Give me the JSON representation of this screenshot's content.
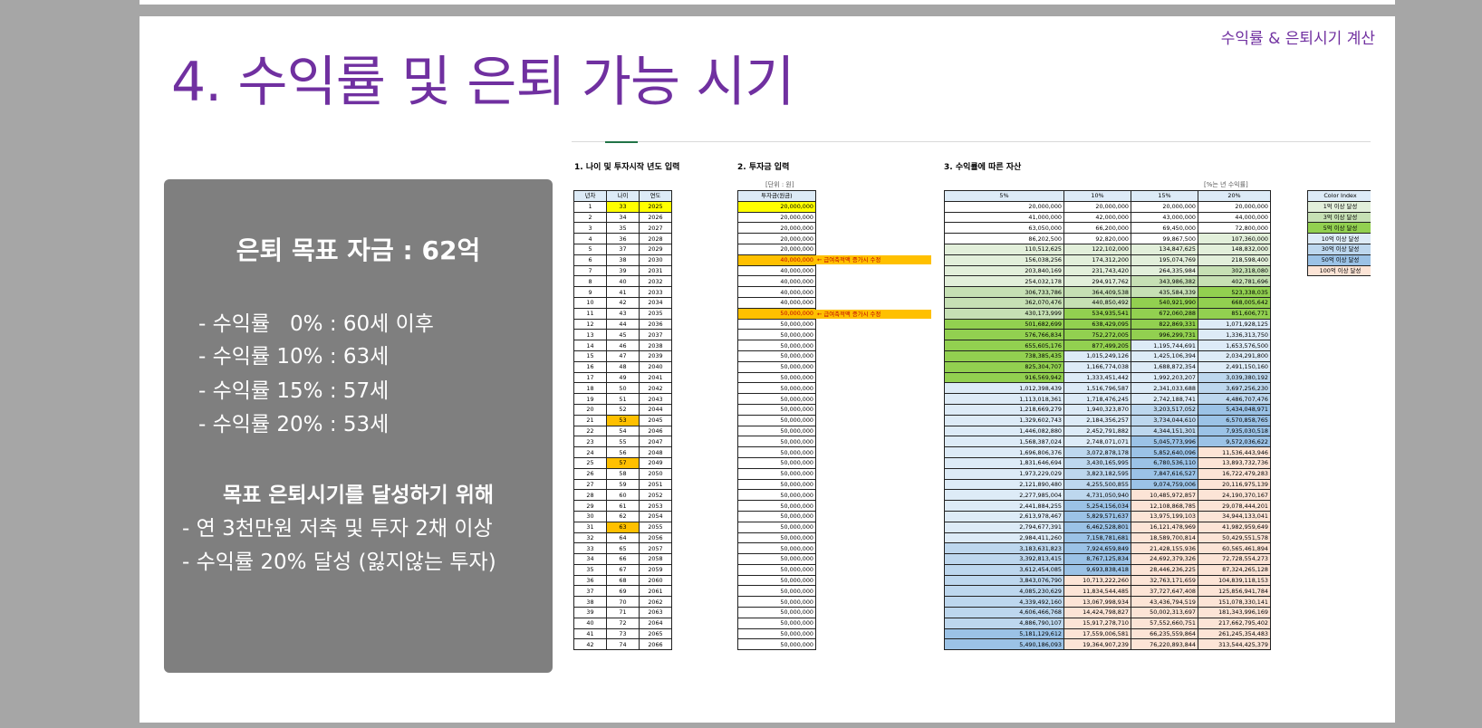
{
  "slide": {
    "title": "4. 수익률 및 은퇴 가능 시기",
    "subtitle": "수익률 & 은퇴시기 계산"
  },
  "summary": {
    "title": "은퇴 목표 자금 : 62억",
    "lines": [
      "- 수익률   0% : 60세 이후",
      "- 수익률 10% : 63세",
      "- 수익률 15% : 57세",
      "- 수익률 20% : 53세"
    ],
    "subtitle": "목표 은퇴시기를 달성하기 위해",
    "actions": [
      "- 연 3천만원 저축 및 투자 2채 이상",
      "- 수익률 20% 달성 (잃지않는 투자)"
    ]
  },
  "sheet": {
    "section1": "1. 나이 및 투자시작 년도 입력",
    "section2": "2. 투자금 입력",
    "section3": "3. 수익률에 따른 자산",
    "unit_note": "[단위 : 원]",
    "rate_note": "[%는 년 수익률]",
    "age_headers": [
      "년차",
      "나이",
      "연도"
    ],
    "invest_header": "투자금(원금)",
    "return_headers": [
      "5%",
      "10%",
      "15%",
      "20%"
    ],
    "increase_note": "← 급여축적액 증가시 수정",
    "legend_header": "Color Index",
    "legend": [
      {
        "label": "1억 이상 달성",
        "color": "#e2efda"
      },
      {
        "label": "3억 이상 달성",
        "color": "#c6e0b4"
      },
      {
        "label": "5억 이상 달성",
        "color": "#92d050"
      },
      {
        "label": "10억 이상 달성",
        "color": "#ddebf7"
      },
      {
        "label": "30억 이상 달성",
        "color": "#bdd7ee"
      },
      {
        "label": "50억 이상 달성",
        "color": "#9bc2e6"
      },
      {
        "label": "100억 이상 달성",
        "color": "#fce4d6"
      }
    ],
    "highlight_colors": {
      "input": "#ffff00",
      "marker": "#ffc000",
      "note_text": "#c00000"
    },
    "rows": [
      [
        1,
        33,
        2025,
        "20,000,000",
        "20,000,000",
        "20,000,000",
        "20,000,000",
        "20,000,000"
      ],
      [
        2,
        34,
        2026,
        "20,000,000",
        "41,000,000",
        "42,000,000",
        "43,000,000",
        "44,000,000"
      ],
      [
        3,
        35,
        2027,
        "20,000,000",
        "63,050,000",
        "66,200,000",
        "69,450,000",
        "72,800,000"
      ],
      [
        4,
        36,
        2028,
        "20,000,000",
        "86,202,500",
        "92,820,000",
        "99,867,500",
        "107,360,000"
      ],
      [
        5,
        37,
        2029,
        "20,000,000",
        "110,512,625",
        "122,102,000",
        "134,847,625",
        "148,832,000"
      ],
      [
        6,
        38,
        2030,
        "40,000,000",
        "156,038,256",
        "174,312,200",
        "195,074,769",
        "218,598,400"
      ],
      [
        7,
        39,
        2031,
        "40,000,000",
        "203,840,169",
        "231,743,420",
        "264,335,984",
        "302,318,080"
      ],
      [
        8,
        40,
        2032,
        "40,000,000",
        "254,032,178",
        "294,917,762",
        "343,986,382",
        "402,781,696"
      ],
      [
        9,
        41,
        2033,
        "40,000,000",
        "306,733,786",
        "364,409,538",
        "435,584,339",
        "523,338,035"
      ],
      [
        10,
        42,
        2034,
        "40,000,000",
        "362,070,476",
        "440,850,492",
        "540,921,990",
        "668,005,642"
      ],
      [
        11,
        43,
        2035,
        "50,000,000",
        "430,173,999",
        "534,935,541",
        "672,060,288",
        "851,606,771"
      ],
      [
        12,
        44,
        2036,
        "50,000,000",
        "501,682,699",
        "638,429,095",
        "822,869,331",
        "1,071,928,125"
      ],
      [
        13,
        45,
        2037,
        "50,000,000",
        "576,766,834",
        "752,272,005",
        "996,299,731",
        "1,336,313,750"
      ],
      [
        14,
        46,
        2038,
        "50,000,000",
        "655,605,176",
        "877,499,205",
        "1,195,744,691",
        "1,653,576,500"
      ],
      [
        15,
        47,
        2039,
        "50,000,000",
        "738,385,435",
        "1,015,249,126",
        "1,425,106,394",
        "2,034,291,800"
      ],
      [
        16,
        48,
        2040,
        "50,000,000",
        "825,304,707",
        "1,166,774,038",
        "1,688,872,354",
        "2,491,150,160"
      ],
      [
        17,
        49,
        2041,
        "50,000,000",
        "916,569,942",
        "1,333,451,442",
        "1,992,203,207",
        "3,039,380,192"
      ],
      [
        18,
        50,
        2042,
        "50,000,000",
        "1,012,398,439",
        "1,516,796,587",
        "2,341,033,688",
        "3,697,256,230"
      ],
      [
        19,
        51,
        2043,
        "50,000,000",
        "1,113,018,361",
        "1,718,476,245",
        "2,742,188,741",
        "4,486,707,476"
      ],
      [
        20,
        52,
        2044,
        "50,000,000",
        "1,218,669,279",
        "1,940,323,870",
        "3,203,517,052",
        "5,434,048,971"
      ],
      [
        21,
        53,
        2045,
        "50,000,000",
        "1,329,602,743",
        "2,184,356,257",
        "3,734,044,610",
        "6,570,858,765"
      ],
      [
        22,
        54,
        2046,
        "50,000,000",
        "1,446,082,880",
        "2,452,791,882",
        "4,344,151,301",
        "7,935,030,518"
      ],
      [
        23,
        55,
        2047,
        "50,000,000",
        "1,568,387,024",
        "2,748,071,071",
        "5,045,773,996",
        "9,572,036,622"
      ],
      [
        24,
        56,
        2048,
        "50,000,000",
        "1,696,806,376",
        "3,072,878,178",
        "5,852,640,096",
        "11,536,443,946"
      ],
      [
        25,
        57,
        2049,
        "50,000,000",
        "1,831,646,694",
        "3,430,165,995",
        "6,780,536,110",
        "13,893,732,736"
      ],
      [
        26,
        58,
        2050,
        "50,000,000",
        "1,973,229,029",
        "3,823,182,595",
        "7,847,616,527",
        "16,722,479,283"
      ],
      [
        27,
        59,
        2051,
        "50,000,000",
        "2,121,890,480",
        "4,255,500,855",
        "9,074,759,006",
        "20,116,975,139"
      ],
      [
        28,
        60,
        2052,
        "50,000,000",
        "2,277,985,004",
        "4,731,050,940",
        "10,485,972,857",
        "24,190,370,167"
      ],
      [
        29,
        61,
        2053,
        "50,000,000",
        "2,441,884,255",
        "5,254,156,034",
        "12,108,868,785",
        "29,078,444,201"
      ],
      [
        30,
        62,
        2054,
        "50,000,000",
        "2,613,978,467",
        "5,829,571,637",
        "13,975,199,103",
        "34,944,133,041"
      ],
      [
        31,
        63,
        2055,
        "50,000,000",
        "2,794,677,391",
        "6,462,528,801",
        "16,121,478,969",
        "41,982,959,649"
      ],
      [
        32,
        64,
        2056,
        "50,000,000",
        "2,984,411,260",
        "7,158,781,681",
        "18,589,700,814",
        "50,429,551,578"
      ],
      [
        33,
        65,
        2057,
        "50,000,000",
        "3,183,631,823",
        "7,924,659,849",
        "21,428,155,936",
        "60,565,461,894"
      ],
      [
        34,
        66,
        2058,
        "50,000,000",
        "3,392,813,415",
        "8,767,125,834",
        "24,692,379,326",
        "72,728,554,273"
      ],
      [
        35,
        67,
        2059,
        "50,000,000",
        "3,612,454,085",
        "9,693,838,418",
        "28,446,236,225",
        "87,324,265,128"
      ],
      [
        36,
        68,
        2060,
        "50,000,000",
        "3,843,076,790",
        "10,713,222,260",
        "32,763,171,659",
        "104,839,118,153"
      ],
      [
        37,
        69,
        2061,
        "50,000,000",
        "4,085,230,629",
        "11,834,544,485",
        "37,727,647,408",
        "125,856,941,784"
      ],
      [
        38,
        70,
        2062,
        "50,000,000",
        "4,339,492,160",
        "13,067,998,934",
        "43,436,794,519",
        "151,078,330,141"
      ],
      [
        39,
        71,
        2063,
        "50,000,000",
        "4,606,466,768",
        "14,424,798,827",
        "50,002,313,697",
        "181,343,996,169"
      ],
      [
        40,
        72,
        2064,
        "50,000,000",
        "4,886,790,107",
        "15,917,278,710",
        "57,552,660,751",
        "217,662,795,402"
      ],
      [
        41,
        73,
        2065,
        "50,000,000",
        "5,181,129,612",
        "17,559,006,581",
        "66,235,559,864",
        "261,245,354,483"
      ],
      [
        42,
        74,
        2066,
        "50,000,000",
        "5,490,186,093",
        "19,364,907,239",
        "76,220,893,844",
        "313,544,425,379"
      ]
    ]
  }
}
